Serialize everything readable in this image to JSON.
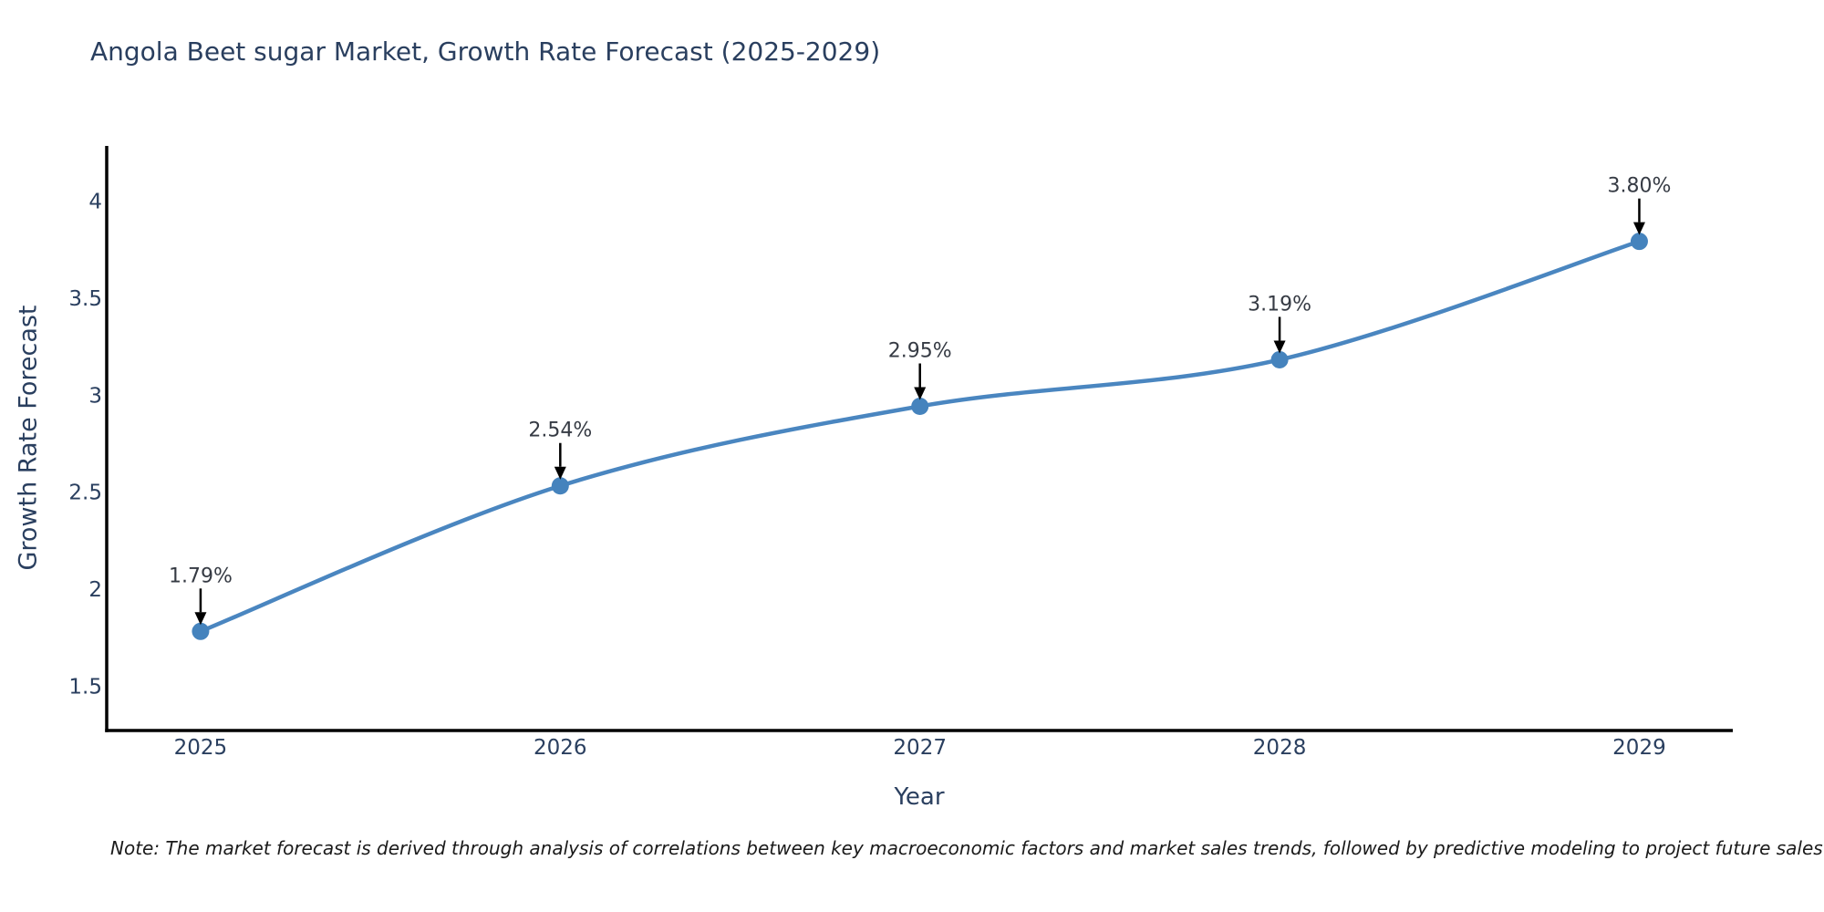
{
  "note": "Note: The market forecast is derived through analysis of correlations between key macroeconomic factors and market sales trends, followed by predictive modeling to project future sales",
  "chart_data": {
    "type": "line",
    "title": "Angola Beet sugar Market, Growth Rate Forecast (2025-2029)",
    "xlabel": "Year",
    "ylabel": "Growth Rate Forecast",
    "x": [
      2025,
      2026,
      2027,
      2028,
      2029
    ],
    "values": [
      1.79,
      2.54,
      2.95,
      3.19,
      3.8
    ],
    "point_labels": [
      "1.79%",
      "2.54%",
      "2.95%",
      "3.19%",
      "3.80%"
    ],
    "xtick_labels": [
      "2025",
      "2026",
      "2027",
      "2028",
      "2029"
    ],
    "yticks": [
      1.5,
      2,
      2.5,
      3,
      3.5,
      4
    ],
    "ytick_labels": [
      "1.5",
      "2",
      "2.5",
      "3",
      "3.5",
      "4"
    ],
    "xlim": [
      2024.739,
      2029.26
    ],
    "ylim": [
      1.279,
      4.292
    ],
    "grid": false,
    "legend": "none",
    "line_color": "#4a86c0",
    "marker_color": "#4583bd",
    "axis_color": "#000000",
    "label_color": "#2a3f5f",
    "annotation_color": "#363b44",
    "arrow_color": "#000000"
  }
}
